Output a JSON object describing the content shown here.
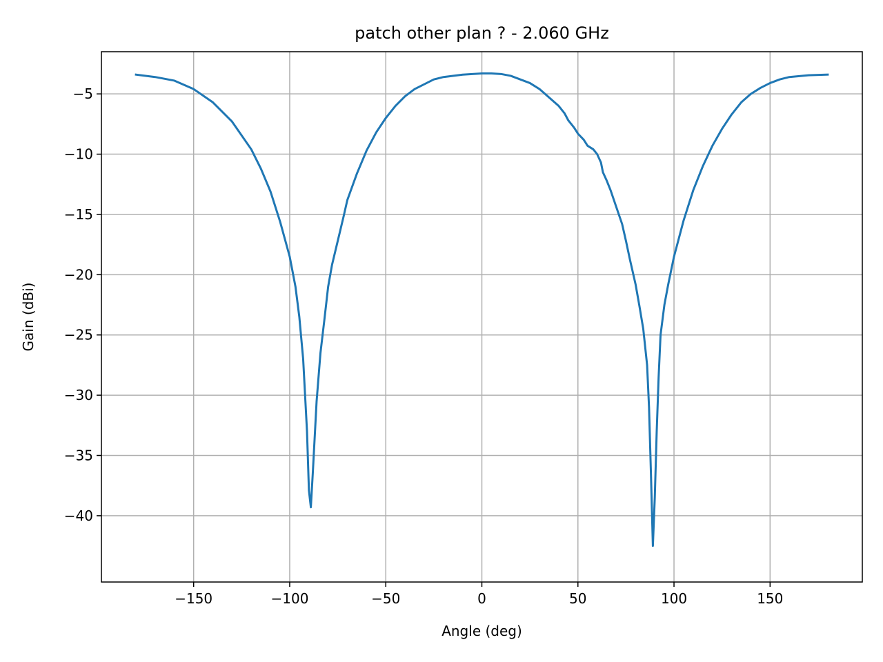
{
  "chart_data": {
    "type": "line",
    "title": "patch other plan ? - 2.060 GHz",
    "xlabel": "Angle (deg)",
    "ylabel": "Gain (dBi)",
    "xlim": [
      -198,
      198
    ],
    "ylim": [
      -45.5,
      -1.5
    ],
    "xticks": [
      -150,
      -100,
      -50,
      0,
      50,
      100,
      150
    ],
    "xtick_labels": [
      "−150",
      "−100",
      "−50",
      "0",
      "50",
      "100",
      "150"
    ],
    "yticks": [
      -5,
      -10,
      -15,
      -20,
      -25,
      -30,
      -35,
      -40
    ],
    "ytick_labels": [
      "−5",
      "−10",
      "−15",
      "−20",
      "−25",
      "−30",
      "−35",
      "−40"
    ],
    "grid": true,
    "series": [
      {
        "color": "#1f77b4",
        "x": [
          -180,
          -170,
          -160,
          -150,
          -140,
          -130,
          -120,
          -115,
          -110,
          -105,
          -100,
          -97,
          -95,
          -93,
          -91,
          -90,
          -89,
          -88,
          -86,
          -84,
          -82,
          -80,
          -78,
          -75,
          -72,
          -70,
          -65,
          -60,
          -55,
          -50,
          -45,
          -40,
          -35,
          -30,
          -25,
          -20,
          -15,
          -10,
          -5,
          0,
          5,
          10,
          15,
          20,
          25,
          30,
          35,
          40,
          43,
          45,
          48,
          50,
          53,
          55,
          58,
          60,
          62,
          63,
          65,
          67,
          70,
          73,
          75,
          77,
          80,
          82,
          84,
          86,
          87,
          88,
          89,
          90,
          91,
          92,
          93,
          95,
          97,
          100,
          105,
          110,
          115,
          120,
          125,
          130,
          135,
          140,
          145,
          150,
          155,
          160,
          170,
          180
        ],
        "y": [
          -3.4,
          -3.6,
          -3.9,
          -4.6,
          -5.7,
          -7.3,
          -9.6,
          -11.2,
          -13.1,
          -15.6,
          -18.5,
          -21.0,
          -23.5,
          -27.0,
          -33.0,
          -37.9,
          -39.3,
          -36.5,
          -30.5,
          -26.5,
          -23.8,
          -21.0,
          -19.2,
          -17.2,
          -15.2,
          -13.8,
          -11.6,
          -9.7,
          -8.2,
          -7.0,
          -6.0,
          -5.2,
          -4.6,
          -4.2,
          -3.8,
          -3.6,
          -3.5,
          -3.4,
          -3.35,
          -3.3,
          -3.3,
          -3.35,
          -3.5,
          -3.8,
          -4.1,
          -4.6,
          -5.3,
          -6.0,
          -6.6,
          -7.2,
          -7.8,
          -8.3,
          -8.8,
          -9.3,
          -9.6,
          -10.0,
          -10.7,
          -11.5,
          -12.2,
          -13.0,
          -14.4,
          -15.8,
          -17.2,
          -18.7,
          -20.8,
          -22.6,
          -24.5,
          -27.5,
          -31.0,
          -36.5,
          -42.5,
          -38.5,
          -33.0,
          -28.5,
          -25.0,
          -22.5,
          -20.8,
          -18.5,
          -15.5,
          -13.0,
          -11.0,
          -9.3,
          -7.9,
          -6.7,
          -5.7,
          -5.0,
          -4.5,
          -4.1,
          -3.8,
          -3.6,
          -3.45,
          -3.4
        ]
      }
    ]
  }
}
